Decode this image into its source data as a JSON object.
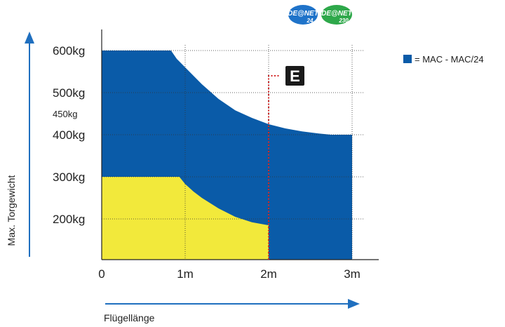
{
  "badges": [
    {
      "text": "DE@NET",
      "sub": "24",
      "color": "#1f73c9"
    },
    {
      "text": "DE@NET",
      "sub": "230",
      "color": "#2ea84a"
    }
  ],
  "marker": {
    "label": "E",
    "x": 2
  },
  "legend": [
    {
      "label": "= MAC - MAC/24",
      "color": "#0a5ba8"
    }
  ],
  "chart_data": {
    "type": "area",
    "xlabel": "Flügellänge",
    "ylabel": "Max. Torgewicht",
    "x_ticks": [
      "0",
      "1m",
      "2m",
      "3m"
    ],
    "x_tick_values": [
      0,
      1,
      2,
      3
    ],
    "y_ticks": [
      "200kg",
      "300kg",
      "400kg",
      "500kg",
      "600kg"
    ],
    "y_tick_values": [
      200,
      300,
      400,
      500,
      600
    ],
    "extra_label": {
      "text": "450kg",
      "value": 450
    },
    "xlim": [
      0,
      3.3
    ],
    "ylim": [
      100,
      680
    ],
    "grid": true,
    "legend_position": "top-right",
    "series": [
      {
        "name": "MAC - MAC/24",
        "color": "#0a5ba8",
        "x": [
          0,
          0.83,
          0.9,
          1.0,
          1.2,
          1.4,
          1.6,
          1.8,
          2.0,
          2.2,
          2.4,
          2.6,
          2.75,
          3.0
        ],
        "y": [
          600,
          600,
          580,
          560,
          520,
          485,
          458,
          440,
          425,
          415,
          408,
          403,
          400,
          400
        ]
      },
      {
        "color": "#f2e93b",
        "x": [
          0,
          0.93,
          1.0,
          1.1,
          1.2,
          1.4,
          1.6,
          1.8,
          2.0
        ],
        "y": [
          300,
          300,
          283,
          265,
          250,
          225,
          205,
          192,
          185
        ]
      }
    ]
  }
}
